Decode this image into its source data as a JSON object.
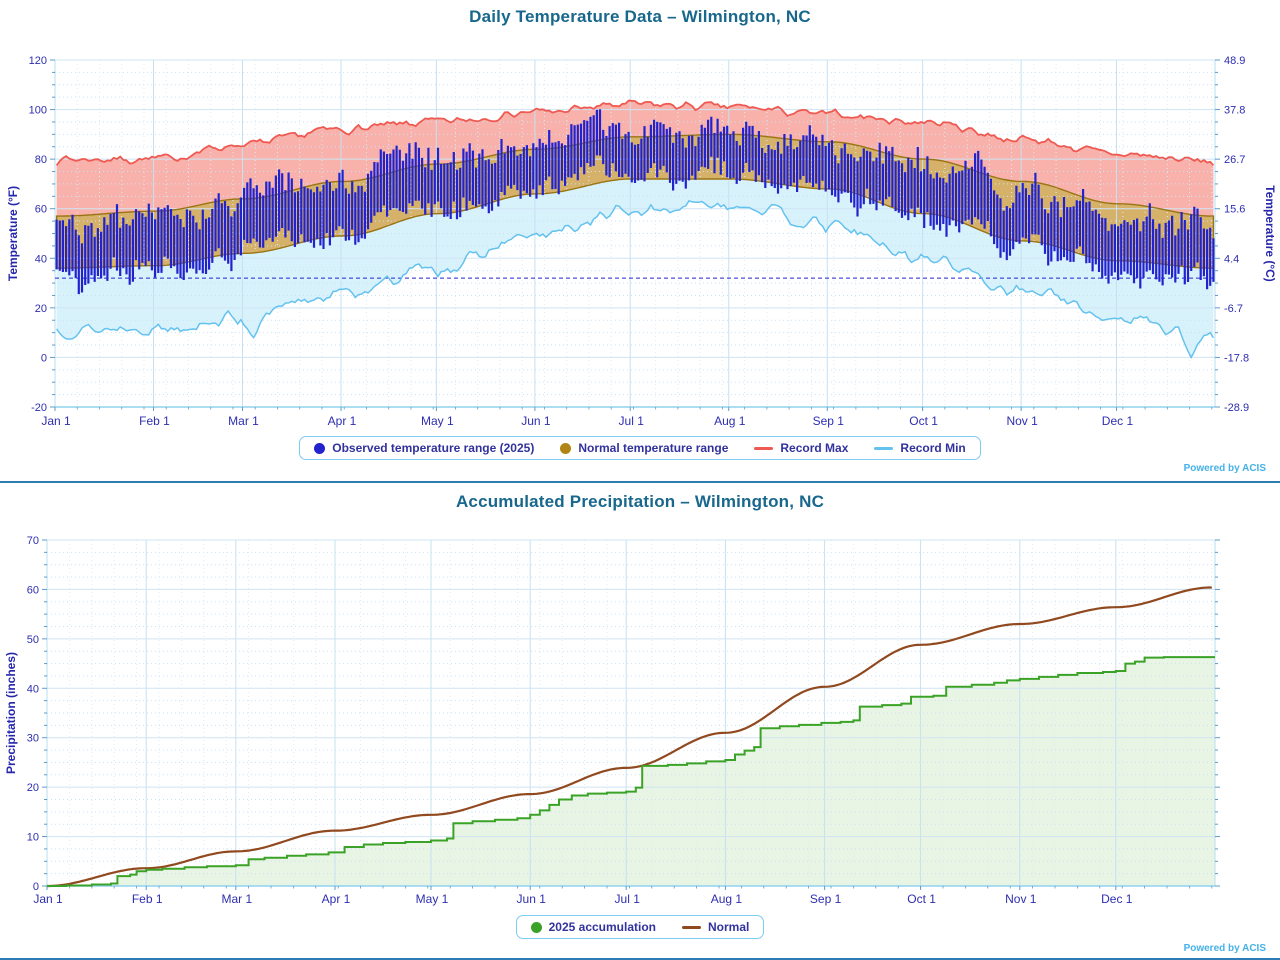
{
  "page": {
    "title_color": "#18678c",
    "link_color": "#45b1e8",
    "divider_color": "#2e7cb5",
    "powered_by": "Powered by ACIS"
  },
  "chart_data": [
    {
      "type": "area",
      "title": "Daily Temperature Data – Wilmington, NC",
      "ylabel_left": "Temperature (°F)",
      "ylabel_right": "Temperature (°C)",
      "ylim": [
        -20,
        120
      ],
      "yticks_f": [
        120,
        100,
        80,
        60,
        40,
        20,
        0,
        -20
      ],
      "yticks_c": [
        "48.9",
        "37.8",
        "26.7",
        "15.6",
        "4.4",
        "-6.7",
        "-17.8",
        "-28.9"
      ],
      "grid": {
        "major_step_f": 20,
        "minor_step_f": 5,
        "minor_day_step": 7,
        "grid_on": true
      },
      "xticks": [
        "Jan 1",
        "Feb 1",
        "Mar 1",
        "Apr 1",
        "May 1",
        "Jun 1",
        "Jul 1",
        "Aug 1",
        "Sep 1",
        "Oct 1",
        "Nov 1",
        "Dec 1"
      ],
      "xtick_days": [
        0,
        31,
        59,
        90,
        120,
        151,
        181,
        212,
        243,
        273,
        304,
        334
      ],
      "anchor_days": [
        0,
        31,
        59,
        90,
        120,
        151,
        181,
        212,
        243,
        273,
        304,
        334,
        364
      ],
      "n_days": 365,
      "freezing_line_f": 32,
      "series": {
        "observed": {
          "label": "Observed temperature range (2025)",
          "bar_color": "#2323cd",
          "monthly_high": [
            55,
            58,
            65,
            73,
            81,
            88,
            92,
            90,
            86,
            77,
            67,
            58,
            52
          ],
          "monthly_low": [
            33,
            36,
            43,
            51,
            60,
            69,
            74,
            73,
            68,
            56,
            45,
            36,
            30
          ],
          "seed": 42
        },
        "normal_range": {
          "label": "Normal temperature range",
          "edge_color": "#9a7413",
          "fill_color": "#d2aa5c",
          "legend_dot_color": "#b08515",
          "monthly_max": [
            57,
            59,
            64,
            71,
            78,
            84,
            89,
            90,
            87,
            80,
            71,
            62,
            57
          ],
          "monthly_min": [
            36,
            37,
            42,
            49,
            58,
            66,
            72,
            72,
            68,
            58,
            47,
            39,
            36
          ]
        },
        "record_max": {
          "label": "Record Max",
          "line_color": "#ee5a52",
          "fill_color": "#f8b2ab",
          "monthly": [
            80,
            80,
            86,
            92,
            95,
            99,
            102,
            101,
            98,
            95,
            88,
            82,
            79
          ],
          "noise": 2.0,
          "seed": 7
        },
        "record_min": {
          "label": "Record Min",
          "line_color": "#64c2ee",
          "fill_color": "#d8f2fc",
          "monthly": [
            11,
            12,
            16,
            26,
            36,
            49,
            59,
            62,
            53,
            40,
            27,
            16,
            9
          ],
          "noise": 3.0,
          "seed": 13,
          "dips": [
            [
              62,
              8
            ],
            [
              357,
              0
            ]
          ]
        }
      }
    },
    {
      "type": "line",
      "title": "Accumulated Precipitation – Wilmington, NC",
      "ylabel_left": "Precipitation (inches)",
      "ylim": [
        0,
        70
      ],
      "yticks": [
        70,
        60,
        50,
        40,
        30,
        20,
        10,
        0
      ],
      "grid": {
        "major_step": 10,
        "minor_step": 2.5,
        "minor_day_step": 7,
        "grid_on": true
      },
      "xticks": [
        "Jan 1",
        "Feb 1",
        "Mar 1",
        "Apr 1",
        "May 1",
        "Jun 1",
        "Jul 1",
        "Aug 1",
        "Sep 1",
        "Oct 1",
        "Nov 1",
        "Dec 1"
      ],
      "xtick_days": [
        0,
        31,
        59,
        90,
        120,
        151,
        181,
        212,
        243,
        273,
        304,
        334
      ],
      "anchor_days": [
        0,
        31,
        59,
        90,
        120,
        151,
        181,
        212,
        243,
        273,
        304,
        334,
        364
      ],
      "n_days": 365,
      "series": {
        "accumulation": {
          "label": "2025 accumulation",
          "line_color": "#3aa327",
          "fill_color": "#cfe8c4",
          "total": 46.3,
          "steps": [
            [
              0,
              0
            ],
            [
              6,
              0.1
            ],
            [
              14,
              0.3
            ],
            [
              20,
              0.5
            ],
            [
              22,
              2.0
            ],
            [
              26,
              2.3
            ],
            [
              28,
              3.0
            ],
            [
              31,
              3.3
            ],
            [
              36,
              3.5
            ],
            [
              43,
              3.8
            ],
            [
              50,
              4.0
            ],
            [
              59,
              4.2
            ],
            [
              63,
              5.4
            ],
            [
              68,
              5.7
            ],
            [
              75,
              6.1
            ],
            [
              81,
              6.4
            ],
            [
              88,
              6.8
            ],
            [
              93,
              7.9
            ],
            [
              99,
              8.4
            ],
            [
              105,
              8.7
            ],
            [
              112,
              8.9
            ],
            [
              120,
              9.2
            ],
            [
              125,
              9.6
            ],
            [
              127,
              12.7
            ],
            [
              133,
              13.1
            ],
            [
              140,
              13.4
            ],
            [
              147,
              13.7
            ],
            [
              151,
              14.4
            ],
            [
              154,
              15.3
            ],
            [
              157,
              16.4
            ],
            [
              160,
              17.5
            ],
            [
              164,
              18.3
            ],
            [
              169,
              18.7
            ],
            [
              175,
              18.9
            ],
            [
              181,
              19.1
            ],
            [
              184,
              19.9
            ],
            [
              186,
              24.3
            ],
            [
              194,
              24.5
            ],
            [
              200,
              24.8
            ],
            [
              206,
              25.2
            ],
            [
              212,
              25.5
            ],
            [
              215,
              26.6
            ],
            [
              218,
              27.4
            ],
            [
              221,
              28.1
            ],
            [
              223,
              31.9
            ],
            [
              229,
              32.3
            ],
            [
              235,
              32.6
            ],
            [
              242,
              33.0
            ],
            [
              248,
              33.2
            ],
            [
              252,
              33.5
            ],
            [
              254,
              36.3
            ],
            [
              261,
              36.6
            ],
            [
              267,
              36.9
            ],
            [
              270,
              38.3
            ],
            [
              277,
              38.5
            ],
            [
              281,
              40.3
            ],
            [
              289,
              40.7
            ],
            [
              296,
              41.1
            ],
            [
              300,
              41.6
            ],
            [
              304,
              41.9
            ],
            [
              310,
              42.3
            ],
            [
              316,
              42.7
            ],
            [
              322,
              43.1
            ],
            [
              330,
              43.3
            ],
            [
              334,
              43.5
            ],
            [
              337,
              45.0
            ],
            [
              340,
              45.4
            ],
            [
              343,
              46.2
            ],
            [
              349,
              46.3
            ],
            [
              364,
              46.3
            ]
          ]
        },
        "normal": {
          "label": "Normal",
          "line_color": "#91491f",
          "monthly_cumulative": [
            0,
            3.6,
            7.0,
            11.2,
            14.4,
            18.6,
            23.9,
            31.0,
            40.3,
            48.8,
            53.0,
            56.4,
            60.4
          ]
        }
      }
    }
  ]
}
